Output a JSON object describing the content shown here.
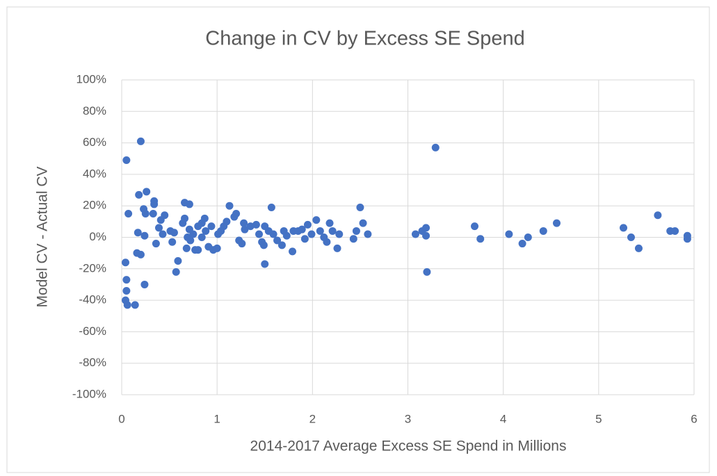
{
  "chart_data": {
    "type": "scatter",
    "title": "Change in CV by Excess SE Spend",
    "x_label": "2014-2017 Average Excess SE Spend in Millions",
    "y_label": "Model CV - Actual CV",
    "color": "#4472c4",
    "grid": true,
    "xlim": [
      0,
      6
    ],
    "xticks": [
      0,
      1,
      2,
      3,
      4,
      5,
      6
    ],
    "ylim": [
      -100,
      100
    ],
    "yticks": [
      {
        "value": -100,
        "label": "-100%"
      },
      {
        "value": -80,
        "label": "-80%"
      },
      {
        "value": -60,
        "label": "-60%"
      },
      {
        "value": -40,
        "label": "-40%"
      },
      {
        "value": -20,
        "label": "-20%"
      },
      {
        "value": 0,
        "label": "0%"
      },
      {
        "value": 20,
        "label": "20%"
      },
      {
        "value": 40,
        "label": "40%"
      },
      {
        "value": 60,
        "label": "60%"
      },
      {
        "value": 80,
        "label": "80%"
      },
      {
        "value": 100,
        "label": "100%"
      }
    ],
    "x": [
      0.05,
      0.2,
      3.29,
      0.07,
      0.04,
      0.05,
      0.05,
      0.04,
      0.06,
      0.14,
      0.24,
      0.18,
      0.26,
      0.34,
      0.34,
      0.23,
      0.25,
      0.33,
      0.45,
      0.17,
      0.24,
      0.16,
      0.2,
      0.36,
      0.39,
      0.41,
      0.43,
      0.51,
      0.55,
      0.53,
      0.57,
      0.59,
      0.66,
      0.71,
      0.66,
      0.64,
      0.71,
      0.69,
      0.68,
      0.72,
      0.75,
      0.77,
      0.8,
      0.8,
      0.84,
      0.87,
      0.84,
      0.88,
      0.91,
      0.94,
      0.96,
      1.0,
      1.01,
      1.04,
      1.07,
      1.1,
      1.13,
      1.18,
      1.2,
      1.23,
      1.26,
      1.28,
      1.29,
      1.35,
      1.41,
      1.44,
      1.47,
      1.49,
      1.5,
      1.5,
      1.54,
      1.57,
      1.59,
      1.63,
      1.68,
      1.7,
      1.73,
      1.79,
      1.8,
      1.85,
      1.89,
      1.92,
      1.95,
      1.99,
      2.04,
      2.08,
      2.12,
      2.15,
      2.18,
      2.21,
      2.26,
      2.28,
      2.43,
      2.46,
      2.5,
      2.53,
      2.58,
      3.08,
      3.15,
      3.19,
      3.2,
      3.19,
      3.7,
      3.76,
      4.06,
      4.2,
      4.26,
      4.42,
      4.56,
      5.26,
      5.34,
      5.42,
      5.62,
      5.75,
      5.8,
      5.93,
      5.93
    ],
    "values": [
      49,
      61,
      57,
      15,
      -16,
      -27,
      -34,
      -40,
      -43,
      -43,
      -30,
      27,
      29,
      23,
      21,
      18,
      15,
      15,
      14,
      3,
      1,
      -10,
      -11,
      -4,
      6,
      11,
      2,
      4,
      3,
      -3,
      -22,
      -15,
      22,
      21,
      12,
      9,
      5,
      0,
      -7,
      -2,
      2,
      -8,
      -8,
      7,
      9,
      12,
      0,
      4,
      -6,
      7,
      -8,
      -7,
      2,
      4,
      7,
      10,
      20,
      13,
      15,
      -2,
      -4,
      9,
      5,
      7,
      8,
      2,
      -3,
      -5,
      7,
      -17,
      4,
      19,
      2,
      -2,
      -5,
      4,
      1,
      -9,
      4,
      4,
      5,
      -1,
      8,
      2,
      11,
      4,
      0,
      -3,
      9,
      4,
      -7,
      2,
      -1,
      4,
      19,
      9,
      2,
      2,
      4,
      1,
      -22,
      6,
      7,
      -1,
      2,
      -4,
      0,
      4,
      9,
      6,
      0,
      -7,
      14,
      4,
      4,
      1,
      -1
    ]
  }
}
